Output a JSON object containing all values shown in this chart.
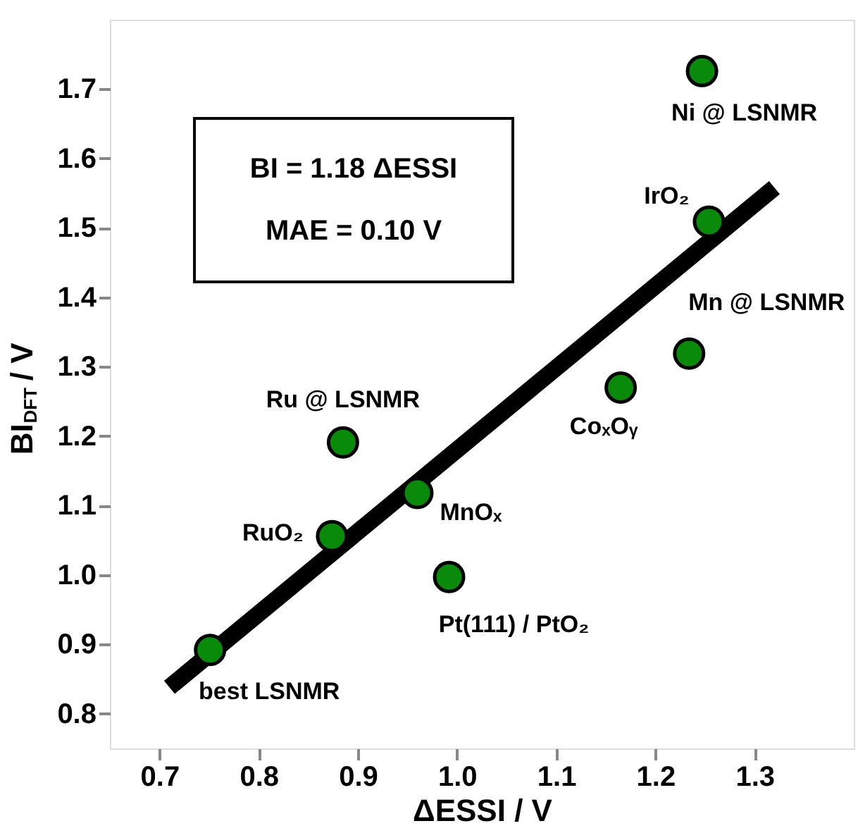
{
  "chart_data": {
    "type": "scatter",
    "xlabel": "ΔESSI  /  V",
    "ylabel": "BI$_{DFT}$  /  V",
    "xlim": [
      0.65,
      1.4
    ],
    "ylim": [
      0.75,
      1.8
    ],
    "xticks": [
      0.7,
      0.8,
      0.9,
      {
        "value": 1.0,
        "label": "1.0"
      },
      1.1,
      1.2,
      1.3
    ],
    "yticks": [
      0.8,
      0.9,
      {
        "value": 1.0,
        "label": "1.0"
      },
      1.1,
      1.2,
      1.3,
      1.4,
      1.5,
      1.6,
      1.7
    ],
    "grid": false,
    "series": [
      {
        "type": "line",
        "color": "#000000",
        "x": [
          0.71,
          1.32
        ],
        "values": [
          0.838,
          1.558
        ]
      },
      {
        "marker": "circle",
        "color": "#0a8a0a",
        "x": [
          0.751,
          0.874,
          0.885,
          0.96,
          0.992,
          1.165,
          1.234,
          1.254,
          1.247
        ],
        "values": [
          0.892,
          1.056,
          1.191,
          1.118,
          0.997,
          1.27,
          1.319,
          1.509,
          1.726
        ]
      }
    ],
    "annotations": [
      "BI = 1.18 ΔESSI",
      "MAE = 0.10 V",
      {
        "text": "best LSNMR",
        "x": 0.751,
        "y": 0.892
      },
      {
        "text": "RuO₂",
        "x": 0.874,
        "y": 1.056
      },
      {
        "text": "Ru @ LSNMR",
        "x": 0.885,
        "y": 1.191
      },
      {
        "text": "MnOₓ",
        "x": 0.96,
        "y": 1.118
      },
      {
        "text": "Pt(111) / PtO₂",
        "x": 0.992,
        "y": 0.997
      },
      {
        "text": "CoₓOᵧ",
        "x": 1.165,
        "y": 1.27
      },
      {
        "text": "Mn @ LSNMR",
        "x": 1.234,
        "y": 1.319
      },
      {
        "text": "IrO₂",
        "x": 1.254,
        "y": 1.509
      },
      {
        "text": "Ni @ LSNMR",
        "x": 1.247,
        "y": 1.726
      }
    ]
  }
}
